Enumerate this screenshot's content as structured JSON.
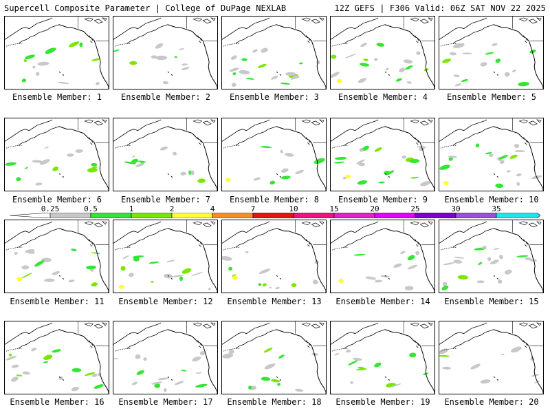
{
  "header": {
    "left_title": "Supercell Composite Parameter | College of DuPage NEXLAB",
    "right_title": "12Z GEFS | F306 Valid: 06Z SAT NOV 22 2025"
  },
  "panels": [
    {
      "label": "Ensemble Member: 1"
    },
    {
      "label": "Ensemble Member: 2"
    },
    {
      "label": "Ensemble Member: 3"
    },
    {
      "label": "Ensemble Member: 4"
    },
    {
      "label": "Ensemble Member: 5"
    },
    {
      "label": "Ensemble Member: 6"
    },
    {
      "label": "Ensemble Member: 7"
    },
    {
      "label": "Ensemble Member: 8"
    },
    {
      "label": "Ensemble Member: 9"
    },
    {
      "label": "Ensemble Member: 10"
    },
    {
      "label": "Ensemble Member: 11"
    },
    {
      "label": "Ensemble Member: 12"
    },
    {
      "label": "Ensemble Member: 13"
    },
    {
      "label": "Ensemble Member: 14"
    },
    {
      "label": "Ensemble Member: 15"
    },
    {
      "label": "Ensemble Member: 16"
    },
    {
      "label": "Ensemble Member: 17"
    },
    {
      "label": "Ensemble Member: 18"
    },
    {
      "label": "Ensemble Member: 19"
    },
    {
      "label": "Ensemble Member: 20"
    }
  ],
  "colorbar": {
    "ticks": [
      "0.25",
      "0.5",
      "1",
      "2",
      "4",
      "7",
      "10",
      "15",
      "20",
      "25",
      "30",
      "35"
    ],
    "colors": [
      "#c8c8c8",
      "#32e632",
      "#7be600",
      "#ffff32",
      "#ff8c1e",
      "#e61414",
      "#f0147a",
      "#e61ecd",
      "#e600ff",
      "#7b00d2",
      "#9650e6",
      "#1ee6e6"
    ],
    "below_color": "#ffffff"
  },
  "legend_colors": {
    "light": "#c8c8c8",
    "green": "#32e632",
    "lime": "#7be600",
    "yellow": "#ffff32"
  }
}
